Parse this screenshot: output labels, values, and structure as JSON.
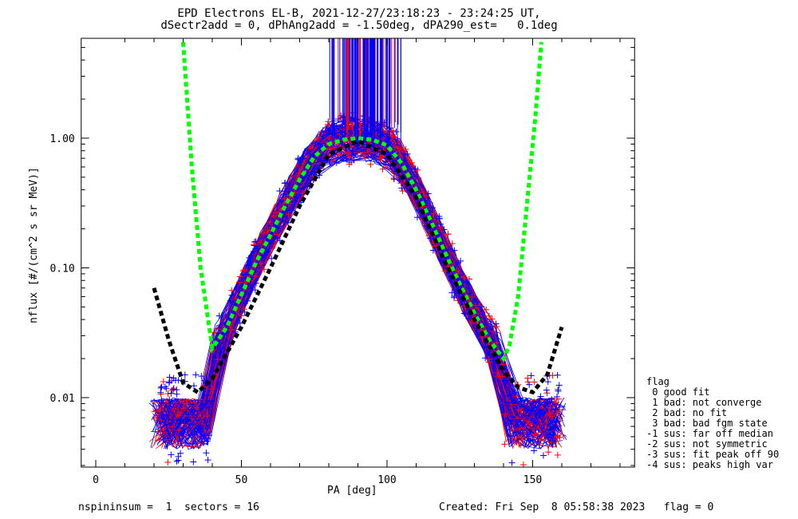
{
  "chart_data": {
    "type": "scatter",
    "title": "EPD Electrons EL-B, 2021-12-27/23:18:23 - 23:24:25 UT,",
    "subtitle": "dSectr2add = 0, dPhAng2add = -1.50deg, dPA290_est=   0.1deg",
    "xlabel": "PA [deg]",
    "ylabel": "nflux [#/(cm^2 s sr MeV)]",
    "xlim": [
      -5,
      185
    ],
    "ylim": [
      0.003,
      5.5
    ],
    "yscale": "log",
    "x_ticks": [
      0,
      50,
      100,
      150
    ],
    "x_tick_labels": [
      "0",
      "50",
      "100",
      "150"
    ],
    "y_ticks": [
      0.01,
      0.1,
      1.0
    ],
    "y_tick_labels": [
      "0.01",
      "0.10",
      "1.00"
    ],
    "colors": {
      "red": "#ff0000",
      "blue": "#0000ff",
      "green": "#00ff00",
      "black": "#000000"
    },
    "model_curves": [
      {
        "color": "#00ff00",
        "style": "dashed-thick",
        "x": [
          30,
          33,
          36,
          40,
          45,
          50,
          55,
          60,
          65,
          70,
          75,
          80,
          85,
          90,
          95,
          100,
          105,
          110,
          115,
          120,
          125,
          130,
          135,
          140,
          142,
          145,
          148,
          151,
          153
        ],
        "y": [
          5.5,
          0.6,
          0.1,
          0.024,
          0.035,
          0.062,
          0.11,
          0.18,
          0.3,
          0.48,
          0.72,
          0.9,
          0.97,
          1.0,
          0.97,
          0.88,
          0.64,
          0.4,
          0.23,
          0.13,
          0.075,
          0.045,
          0.028,
          0.02,
          0.025,
          0.06,
          0.3,
          1.5,
          5.5
        ]
      },
      {
        "color": "#000000",
        "style": "dashed-thick",
        "x": [
          20,
          25,
          30,
          35,
          40,
          50,
          60,
          70,
          80,
          90,
          100,
          110,
          120,
          130,
          140,
          145,
          150,
          155,
          160
        ],
        "y": [
          0.07,
          0.028,
          0.013,
          0.011,
          0.014,
          0.035,
          0.1,
          0.3,
          0.75,
          0.95,
          0.75,
          0.35,
          0.11,
          0.04,
          0.016,
          0.012,
          0.011,
          0.015,
          0.035
        ]
      }
    ],
    "legend": {
      "placement": "right",
      "title": "flag",
      "entries": [
        " 0 good fit",
        " 1 bad: not converge",
        " 2 bad: no fit",
        " 3 bad: bad fgm state",
        "-1 sus: far off median",
        "-2 sus: not symmetric",
        "-3 sus: fit peak off 90",
        "-4 sus: peaks high var"
      ]
    }
  },
  "footer": {
    "left": "nspininsum =  1  sectors = 16",
    "right": "Created: Fri Sep  8 05:58:38 2023   flag = 0"
  }
}
